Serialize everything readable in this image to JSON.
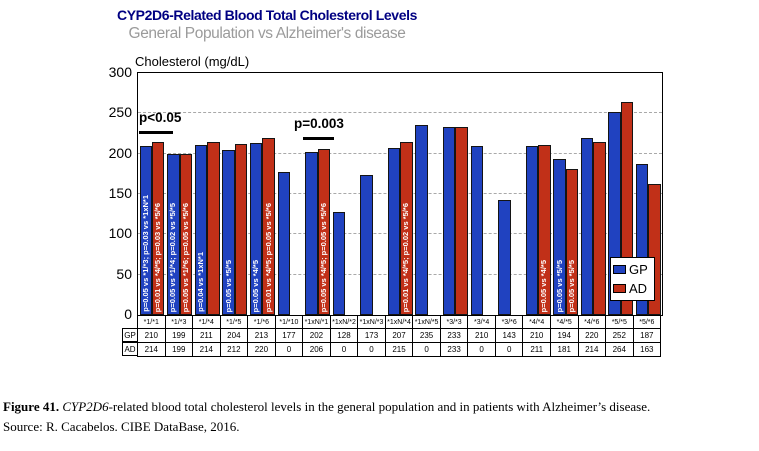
{
  "chart": {
    "title": "CYP2D6-Related Blood Total Cholesterol Levels",
    "title_color": "#000082",
    "subtitle": "General Population vs Alzheimer's disease",
    "subtitle_color": "#9b9b9b",
    "y_axis_label": "Cholesterol (mg/dL)",
    "significance_annotations": [
      {
        "label": "p<0.05"
      },
      {
        "label": "p=0.003"
      }
    ],
    "legend": {
      "items": [
        {
          "label": "GP",
          "color": "#2042c0"
        },
        {
          "label": "AD",
          "color": "#c13018"
        }
      ]
    }
  },
  "chart_data": {
    "type": "bar",
    "title": "CYP2D6-Related Blood Total Cholesterol Levels",
    "subtitle": "General Population vs Alzheimer's disease",
    "ylabel": "Cholesterol (mg/dL)",
    "ylim": [
      0,
      300
    ],
    "yticks": [
      0,
      50,
      100,
      150,
      200,
      250,
      300
    ],
    "grid": "horizontal-dashed",
    "legend_position": "inside-right",
    "categories": [
      "*1/*1",
      "*1/*3",
      "*1/*4",
      "*1/*5",
      "*1/*6",
      "*1/*10",
      "*1xN/*1",
      "*1xN/*2",
      "*1xN/*3",
      "*1xN/*4",
      "*1xN/*5",
      "*3/*3",
      "*3/*4",
      "*3/*6",
      "*4/*4",
      "*4/*5",
      "*4/*6",
      "*5/*5",
      "*5/*6"
    ],
    "series": [
      {
        "name": "GP",
        "color": "#2042c0",
        "values": [
          210,
          199,
          211,
          204,
          213,
          177,
          202,
          128,
          173,
          207,
          235,
          233,
          210,
          143,
          210,
          194,
          220,
          252,
          187
        ]
      },
      {
        "name": "AD",
        "color": "#c13018",
        "values": [
          214,
          199,
          214,
          212,
          220,
          0,
          206,
          0,
          0,
          215,
          0,
          233,
          0,
          0,
          211,
          181,
          214,
          264,
          163
        ]
      }
    ],
    "bar_annotations": {
      "GP": [
        "p=0.05 vs *1/*3; p=0.03 vs *1xN*1",
        "p=0.05 vs *1/*4; p=0.02 vs *5/*5",
        "p=0.04 vs *1xN*1",
        "p=0.05 vs *5/*5",
        "p=0.05 vs *4/*5",
        "",
        "",
        "",
        "",
        "",
        "",
        "",
        "",
        "",
        "",
        "p=0.05 vs *5/*5",
        "",
        "",
        ""
      ],
      "AD": [
        "p=0.01 vs *4/*5; p=0.03 vs *5/*6",
        "p=0.05 vs *1/*6; p=0.05 vs *5/*6",
        "",
        "",
        "p=0.01 vs *4/*5; p=0.05 vs *5/*6",
        "",
        "p=0.05 vs *4/*5; p=0.05 vs *5/*6",
        "",
        "",
        "p=0.01 vs *4/*5; p=0.02 vs *5/*6",
        "",
        "",
        "",
        "",
        "p=0.05 vs *4/*5",
        "p=0.05 vs *5/*5",
        "",
        "",
        ""
      ]
    }
  },
  "data_table": {
    "row_headers": [
      "GP",
      "AD"
    ]
  },
  "caption": {
    "figure_label": "Figure 41.",
    "gene_italic": "CYP2D6",
    "body": "-related blood total cholesterol levels in the general population and in patients with Alzheimer’s disease.",
    "source": "Source: R. Cacabelos. CIBE DataBase, 2016."
  }
}
